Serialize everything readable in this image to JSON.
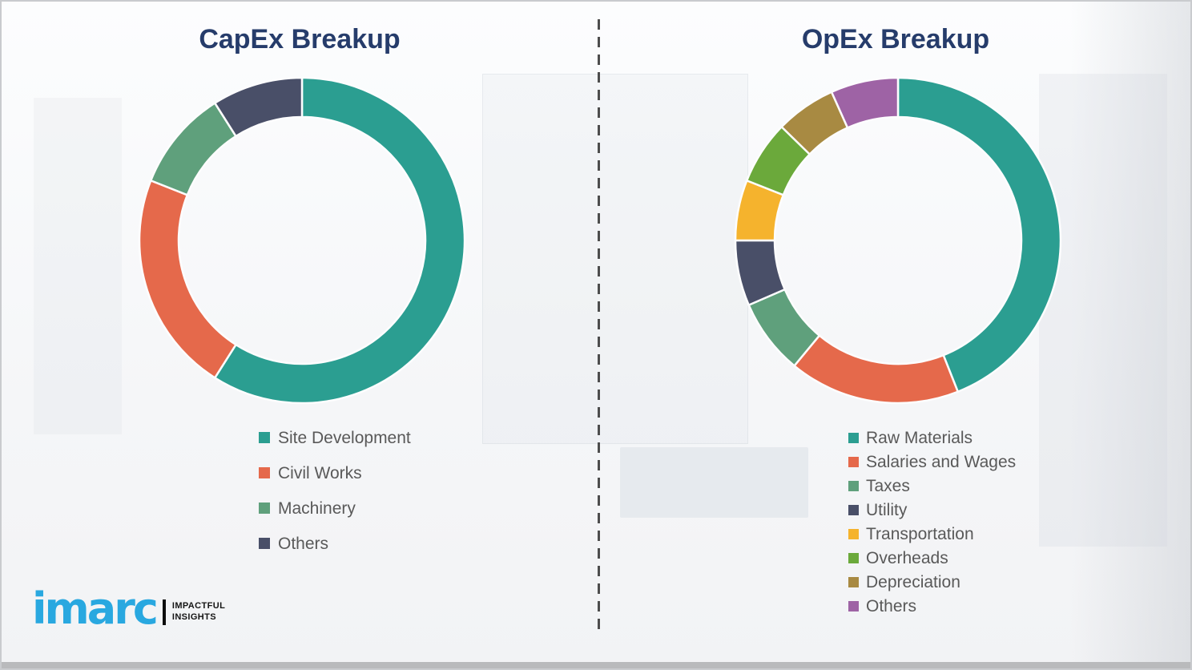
{
  "colors": {
    "title": "#263C6B",
    "legend_text": "#595959",
    "divider": "#4D4D4D",
    "background": "#F5F6F8",
    "border": "#C9CBCE",
    "bottom_bar": "#B9BABC"
  },
  "logo": {
    "brand": "imarc",
    "tagline_line1": "IMPACTFUL",
    "tagline_line2": "INSIGHTS",
    "brand_color": "#29A8E0"
  },
  "chart_data": [
    {
      "type": "pie",
      "subtype": "donut",
      "title": "CapEx Breakup",
      "start_angle_deg": 0,
      "direction": "clockwise",
      "inner_radius_ratio": 0.76,
      "legend_position": "below-left",
      "labels": [
        "Site Development",
        "Civil Works",
        "Machinery",
        "Others"
      ],
      "values": [
        59,
        22,
        10,
        9
      ],
      "colors": [
        "#2B9E91",
        "#E5694B",
        "#5FA07C",
        "#494F68"
      ]
    },
    {
      "type": "pie",
      "subtype": "donut",
      "title": "OpEx Breakup",
      "start_angle_deg": 0,
      "direction": "clockwise",
      "inner_radius_ratio": 0.76,
      "legend_position": "below-left",
      "labels": [
        "Raw Materials",
        "Salaries and Wages",
        "Taxes",
        "Utility",
        "Transportation",
        "Overheads",
        "Depreciation",
        "Others"
      ],
      "values": [
        44,
        17,
        7.5,
        6.5,
        6,
        6.3,
        6,
        6.7
      ],
      "colors": [
        "#2B9E91",
        "#E5694B",
        "#5FA07C",
        "#494F68",
        "#F5B32D",
        "#6BA93B",
        "#A88A42",
        "#9E63A5"
      ]
    }
  ]
}
